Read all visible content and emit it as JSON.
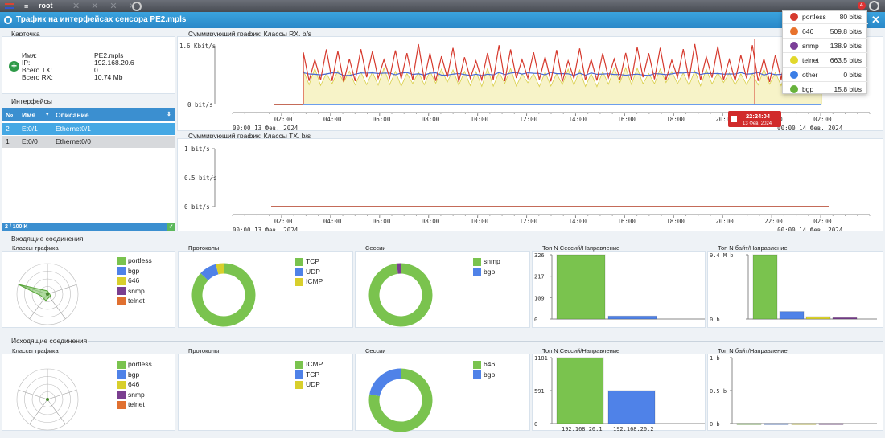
{
  "topbar": {
    "user": "root",
    "notif_count": "4"
  },
  "window": {
    "title": "Трафик на интерфейсах сенсора PE2.mpls"
  },
  "card": {
    "section": "Карточка",
    "rows": [
      {
        "k": "Имя:",
        "v": "PE2.mpls"
      },
      {
        "k": "IP:",
        "v": "192.168.20.6"
      },
      {
        "k": "Всего TX:",
        "v": "0"
      },
      {
        "k": "Всего RX:",
        "v": "10.74 Mb"
      }
    ]
  },
  "interfaces": {
    "section": "Интерфейсы",
    "headers": [
      "№",
      "Имя",
      "Описание"
    ],
    "rows": [
      {
        "n": "2",
        "name": "Et0/1",
        "desc": "Ethernet0/1",
        "selected": true
      },
      {
        "n": "1",
        "name": "Et0/0",
        "desc": "Ethernet0/0",
        "selected": false
      }
    ],
    "footer": "2 / 100 K"
  },
  "rx_chart": {
    "title": "Суммирующий график: Классы RX, b/s",
    "yticks": [
      "1.6 Kbit/s",
      "0 bit/s"
    ],
    "xticks": [
      "02:00",
      "04:00",
      "06:00",
      "08:00",
      "10:00",
      "12:00",
      "14:00",
      "16:00",
      "18:00",
      "20:00",
      "22:00",
      "02:00"
    ],
    "date_start": "00:00 13 Фев. 2024",
    "date_end": "00:00 14 Фев. 2024",
    "cursor_time": "22:24:04",
    "cursor_date": "13 Фев. 2024"
  },
  "tx_chart": {
    "title": "Суммирующий график: Классы TX, b/s",
    "yticks": [
      "1 bit/s",
      "0.5 bit/s",
      "0 bit/s"
    ],
    "xticks": [
      "02:00",
      "04:00",
      "06:00",
      "08:00",
      "10:00",
      "12:00",
      "14:00",
      "16:00",
      "18:00",
      "20:00",
      "22:00",
      "02:00"
    ],
    "date_start": "00:00 13 Фев. 2024",
    "date_end": "00:00 14 Фев. 2024"
  },
  "tooltip": [
    {
      "name": "portless",
      "value": "80 bit/s",
      "color": "#d63a2e"
    },
    {
      "name": "646",
      "value": "509.8 bit/s",
      "color": "#e8722c"
    },
    {
      "name": "snmp",
      "value": "138.9 bit/s",
      "color": "#7b3f98"
    },
    {
      "name": "telnet",
      "value": "663.5 bit/s",
      "color": "#e2d82b"
    },
    {
      "name": "other",
      "value": "0 bit/s",
      "color": "#3b7ee6"
    },
    {
      "name": "bgp",
      "value": "15.8 bit/s",
      "color": "#67b23b"
    }
  ],
  "incoming": {
    "section": "Входящие соединения",
    "classes": {
      "title": "Классы трафика",
      "legend": [
        {
          "name": "portless",
          "color": "#7ac34e"
        },
        {
          "name": "bgp",
          "color": "#4f82e8"
        },
        {
          "name": "646",
          "color": "#d8cf2c"
        },
        {
          "name": "snmp",
          "color": "#7a3e8f"
        },
        {
          "name": "telnet",
          "color": "#e07030"
        }
      ]
    },
    "protocols": {
      "title": "Протоколы",
      "legend": [
        {
          "name": "TCP",
          "color": "#7ac34e"
        },
        {
          "name": "UDP",
          "color": "#4f82e8"
        },
        {
          "name": "ICMP",
          "color": "#d8cf2c"
        }
      ]
    },
    "sessions": {
      "title": "Сессии",
      "legend": [
        {
          "name": "snmp",
          "color": "#7ac34e"
        },
        {
          "name": "bgp",
          "color": "#4f82e8"
        }
      ]
    },
    "topN_sessions": {
      "title": "Топ N Сессий/Направление",
      "yticks": [
        "326",
        "217",
        "109",
        "0"
      ]
    },
    "topN_bytes": {
      "title": "Топ N байт/Направление",
      "yticks": [
        "9.4 M b",
        "0 b"
      ]
    }
  },
  "outgoing": {
    "section": "Исходящие соединения",
    "classes": {
      "title": "Классы трафика",
      "legend": [
        {
          "name": "portless",
          "color": "#7ac34e"
        },
        {
          "name": "bgp",
          "color": "#4f82e8"
        },
        {
          "name": "646",
          "color": "#d8cf2c"
        },
        {
          "name": "snmp",
          "color": "#7a3e8f"
        },
        {
          "name": "telnet",
          "color": "#e07030"
        }
      ]
    },
    "protocols": {
      "title": "Протоколы",
      "legend": [
        {
          "name": "ICMP",
          "color": "#7ac34e"
        },
        {
          "name": "TCP",
          "color": "#4f82e8"
        },
        {
          "name": "UDP",
          "color": "#d8cf2c"
        }
      ]
    },
    "sessions": {
      "title": "Сессии",
      "legend": [
        {
          "name": "646",
          "color": "#7ac34e"
        },
        {
          "name": "bgp",
          "color": "#4f82e8"
        }
      ]
    },
    "topN_sessions": {
      "title": "Топ N Сессий/Направление",
      "yticks": [
        "1181",
        "591",
        "0"
      ],
      "xlabels": [
        "192.168.20.1",
        "192.168.20.2"
      ]
    },
    "topN_bytes": {
      "title": "Топ N байт/Направление",
      "yticks": [
        "1 b",
        "0.5 b",
        "0 b"
      ]
    }
  },
  "chart_data": [
    {
      "type": "bar",
      "title": "Топ N Сессий/Направление",
      "values": [
        326,
        15
      ],
      "colors": [
        "#7ac34e",
        "#4f82e8"
      ],
      "ylim": [
        0,
        326
      ]
    },
    {
      "type": "bar",
      "title": "Топ N байт/Направление",
      "values": [
        9.4,
        1.1,
        0.35,
        0.2
      ],
      "colors": [
        "#7ac34e",
        "#4f82e8",
        "#d8cf2c",
        "#7a3e8f"
      ],
      "ylim": [
        0,
        9.4
      ],
      "yunit": "M b"
    },
    {
      "type": "bar",
      "title": "Топ N Сессий/Направление",
      "categories": [
        "192.168.20.1",
        "192.168.20.2"
      ],
      "values": [
        1181,
        590
      ],
      "colors": [
        "#7ac34e",
        "#4f82e8"
      ],
      "ylim": [
        0,
        1181
      ]
    },
    {
      "type": "pie",
      "title": "Протоколы",
      "labels": [
        "TCP",
        "UDP",
        "ICMP"
      ],
      "values": [
        87,
        9,
        4
      ],
      "colors": [
        "#7ac34e",
        "#4f82e8",
        "#d8cf2c"
      ]
    },
    {
      "type": "pie",
      "title": "Сессии",
      "labels": [
        "snmp",
        "bgp",
        "other"
      ],
      "values": [
        98,
        0,
        2
      ],
      "colors": [
        "#7ac34e",
        "#4f82e8",
        "#7a3e8f"
      ]
    },
    {
      "type": "pie",
      "title": "Сессии",
      "labels": [
        "646",
        "bgp"
      ],
      "values": [
        78,
        22
      ],
      "colors": [
        "#7ac34e",
        "#4f82e8"
      ]
    }
  ]
}
